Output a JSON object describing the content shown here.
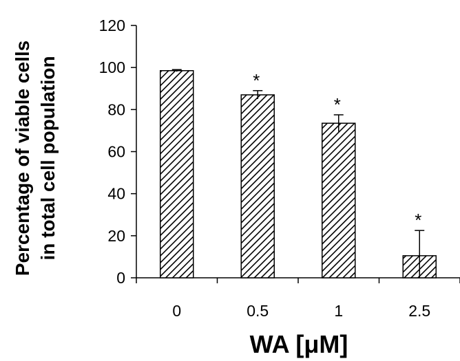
{
  "chart_data": {
    "type": "bar",
    "title": "",
    "xlabel": "WA [μM]",
    "ylabel_lines": [
      "Percentage of viable cells",
      "in total cell population"
    ],
    "categories": [
      "0",
      "0.5",
      "1",
      "2.5"
    ],
    "values": [
      98.5,
      87,
      73.5,
      10.5
    ],
    "errors": [
      0.5,
      2,
      4,
      12
    ],
    "significance": [
      "",
      "*",
      "*",
      "*"
    ],
    "ylim": [
      0,
      120
    ],
    "yticks": [
      0,
      20,
      40,
      60,
      80,
      100,
      120
    ],
    "grid": false,
    "legend": "none",
    "bar_pattern": "diagonal-hatch",
    "colors": {
      "bar_fill": "#ffffff",
      "hatch": "#000000",
      "axis": "#000000"
    }
  }
}
